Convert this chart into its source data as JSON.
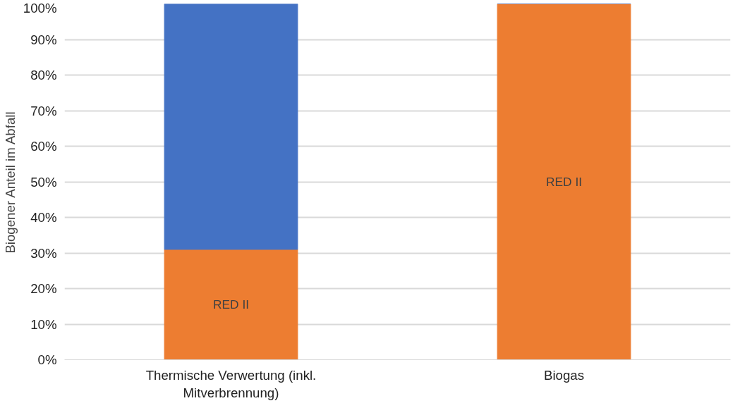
{
  "chart_data": {
    "type": "bar",
    "stacked": true,
    "ylabel": "Biogener Anteil im Abfall",
    "categories": [
      "Thermische Verwertung (inkl. Mitverbrennung)",
      "Biogas"
    ],
    "series": [
      {
        "color": "#ed7d31",
        "values": [
          31,
          100
        ],
        "value_labels": [
          "RED II",
          "RED II"
        ]
      },
      {
        "color": "#4472c4",
        "values": [
          69,
          0
        ]
      }
    ],
    "ylim": [
      0,
      100
    ],
    "yticks": [
      {
        "value": 0,
        "label": "0%"
      },
      {
        "value": 10,
        "label": "10%"
      },
      {
        "value": 20,
        "label": "20%"
      },
      {
        "value": 30,
        "label": "30%"
      },
      {
        "value": 40,
        "label": "40%"
      },
      {
        "value": 50,
        "label": "50%"
      },
      {
        "value": 60,
        "label": "60%"
      },
      {
        "value": 70,
        "label": "70%"
      },
      {
        "value": 80,
        "label": "80%"
      },
      {
        "value": 90,
        "label": "90%"
      },
      {
        "value": 100,
        "label": "100%"
      }
    ],
    "grid": "y"
  }
}
